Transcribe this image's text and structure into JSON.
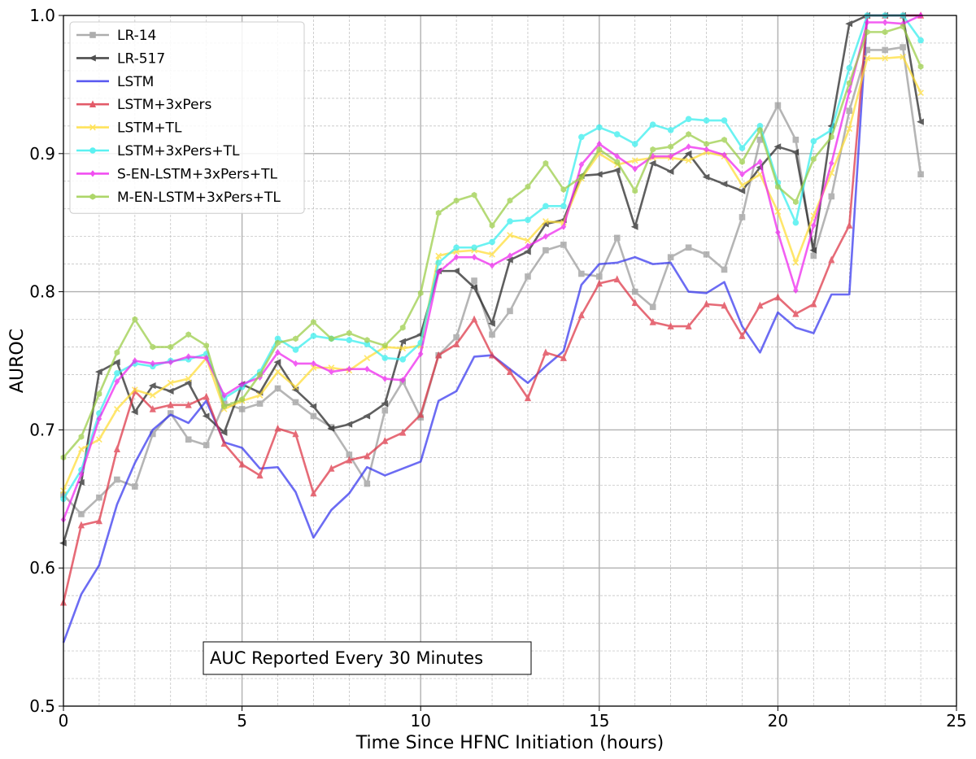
{
  "chart_data": {
    "type": "line",
    "xlabel": "Time Since HFNC Initiation (hours)",
    "ylabel": "AUROC",
    "xlim": [
      0,
      25
    ],
    "ylim": [
      0.5,
      1.0
    ],
    "x_ticks": [
      "0",
      "5",
      "10",
      "15",
      "20",
      "25"
    ],
    "y_ticks": [
      "0.5",
      "0.6",
      "0.7",
      "0.8",
      "0.9",
      "1.0"
    ],
    "grid": true,
    "minor_grid": true,
    "legend_position": "top-left",
    "annotation": "AUC Reported Every 30 Minutes",
    "x": [
      0,
      0.5,
      1,
      1.5,
      2,
      2.5,
      3,
      3.5,
      4,
      4.5,
      5,
      5.5,
      6,
      6.5,
      7,
      7.5,
      8,
      8.5,
      9,
      9.5,
      10,
      10.5,
      11,
      11.5,
      12,
      12.5,
      13,
      13.5,
      14,
      14.5,
      15,
      15.5,
      16,
      16.5,
      17,
      17.5,
      18,
      18.5,
      19,
      19.5,
      20,
      20.5,
      21,
      21.5,
      22,
      22.5,
      23,
      23.5,
      24
    ],
    "series": [
      {
        "name": "LR-14",
        "color": "#999999",
        "marker": "square",
        "values": [
          0.653,
          0.639,
          0.651,
          0.664,
          0.659,
          0.697,
          0.712,
          0.693,
          0.689,
          0.719,
          0.715,
          0.719,
          0.73,
          0.72,
          0.71,
          0.702,
          0.682,
          0.661,
          0.714,
          0.735,
          0.709,
          0.754,
          0.767,
          0.808,
          0.769,
          0.786,
          0.811,
          0.83,
          0.834,
          0.813,
          0.811,
          0.839,
          0.8,
          0.789,
          0.825,
          0.832,
          0.827,
          0.816,
          0.854,
          0.91,
          0.935,
          0.91,
          0.826,
          0.869,
          0.931,
          0.975,
          0.975,
          0.977,
          0.885
        ]
      },
      {
        "name": "LR-517",
        "color": "#222222",
        "marker": "left-triangle",
        "values": [
          0.618,
          0.662,
          0.742,
          0.749,
          0.713,
          0.732,
          0.728,
          0.734,
          0.71,
          0.698,
          0.733,
          0.727,
          0.749,
          0.729,
          0.717,
          0.701,
          0.704,
          0.71,
          0.719,
          0.764,
          0.769,
          0.815,
          0.815,
          0.803,
          0.777,
          0.823,
          0.829,
          0.849,
          0.852,
          0.884,
          0.885,
          0.888,
          0.847,
          0.893,
          0.887,
          0.9,
          0.883,
          0.878,
          0.873,
          0.89,
          0.905,
          0.901,
          0.83,
          0.92,
          0.994,
          1.0,
          1.0,
          1.0,
          0.923
        ]
      },
      {
        "name": "LSTM",
        "color": "#3333ee",
        "marker": "none",
        "values": [
          0.546,
          0.581,
          0.602,
          0.646,
          0.676,
          0.7,
          0.711,
          0.705,
          0.721,
          0.691,
          0.687,
          0.672,
          0.673,
          0.655,
          0.622,
          0.642,
          0.654,
          0.673,
          0.667,
          0.672,
          0.677,
          0.721,
          0.728,
          0.753,
          0.754,
          0.744,
          0.734,
          0.746,
          0.757,
          0.805,
          0.82,
          0.821,
          0.825,
          0.82,
          0.821,
          0.8,
          0.799,
          0.807,
          0.775,
          0.756,
          0.785,
          0.774,
          0.77,
          0.798,
          0.798,
          1.0,
          1.0,
          1.0,
          1.0
        ]
      },
      {
        "name": "LSTM+3xPers",
        "color": "#dd3344",
        "marker": "triangle",
        "values": [
          0.575,
          0.631,
          0.634,
          0.686,
          0.728,
          0.715,
          0.718,
          0.718,
          0.724,
          0.69,
          0.675,
          0.667,
          0.701,
          0.697,
          0.654,
          0.672,
          0.678,
          0.681,
          0.692,
          0.698,
          0.711,
          0.754,
          0.762,
          0.78,
          0.754,
          0.742,
          0.723,
          0.756,
          0.752,
          0.783,
          0.806,
          0.809,
          0.792,
          0.778,
          0.775,
          0.775,
          0.791,
          0.79,
          0.768,
          0.79,
          0.796,
          0.784,
          0.791,
          0.823,
          0.848,
          1.0,
          1.0,
          1.0,
          1.0
        ]
      },
      {
        "name": "LSTM+TL",
        "color": "#ffdd33",
        "marker": "x",
        "values": [
          0.656,
          0.686,
          0.693,
          0.715,
          0.729,
          0.725,
          0.734,
          0.737,
          0.752,
          0.715,
          0.721,
          0.725,
          0.742,
          0.731,
          0.745,
          0.745,
          0.743,
          0.752,
          0.76,
          0.759,
          0.761,
          0.826,
          0.829,
          0.83,
          0.827,
          0.841,
          0.837,
          0.851,
          0.85,
          0.882,
          0.9,
          0.892,
          0.895,
          0.897,
          0.897,
          0.895,
          0.901,
          0.898,
          0.877,
          0.885,
          0.858,
          0.821,
          0.855,
          0.886,
          0.918,
          0.969,
          0.969,
          0.97,
          0.944
        ]
      },
      {
        "name": "LSTM+3xPers+TL",
        "color": "#33eeee",
        "marker": "circle",
        "values": [
          0.65,
          0.671,
          0.712,
          0.741,
          0.748,
          0.746,
          0.75,
          0.751,
          0.755,
          0.723,
          0.731,
          0.742,
          0.766,
          0.758,
          0.768,
          0.766,
          0.765,
          0.762,
          0.752,
          0.751,
          0.763,
          0.821,
          0.832,
          0.832,
          0.836,
          0.851,
          0.852,
          0.862,
          0.862,
          0.912,
          0.919,
          0.914,
          0.907,
          0.921,
          0.917,
          0.925,
          0.924,
          0.924,
          0.904,
          0.92,
          0.879,
          0.85,
          0.909,
          0.917,
          0.962,
          1.0,
          1.0,
          1.0,
          0.982
        ]
      },
      {
        "name": "S-EN-LSTM+3xPers+TL",
        "color": "#ee22ee",
        "marker": "diamond",
        "values": [
          0.635,
          0.668,
          0.708,
          0.735,
          0.75,
          0.748,
          0.749,
          0.753,
          0.752,
          0.725,
          0.733,
          0.738,
          0.756,
          0.748,
          0.748,
          0.742,
          0.744,
          0.744,
          0.737,
          0.736,
          0.755,
          0.814,
          0.825,
          0.825,
          0.819,
          0.826,
          0.833,
          0.84,
          0.847,
          0.892,
          0.907,
          0.898,
          0.889,
          0.898,
          0.898,
          0.905,
          0.903,
          0.899,
          0.885,
          0.894,
          0.843,
          0.801,
          0.848,
          0.893,
          0.945,
          0.995,
          0.995,
          0.994,
          1.0
        ]
      },
      {
        "name": "M-EN-LSTM+3xPers+TL",
        "color": "#99cc44",
        "marker": "hexagon",
        "values": [
          0.68,
          0.695,
          0.726,
          0.756,
          0.78,
          0.76,
          0.76,
          0.769,
          0.761,
          0.717,
          0.722,
          0.74,
          0.763,
          0.766,
          0.778,
          0.766,
          0.77,
          0.765,
          0.761,
          0.774,
          0.799,
          0.857,
          0.866,
          0.87,
          0.848,
          0.866,
          0.876,
          0.893,
          0.874,
          0.883,
          0.903,
          0.894,
          0.873,
          0.903,
          0.905,
          0.914,
          0.907,
          0.91,
          0.894,
          0.917,
          0.876,
          0.865,
          0.896,
          0.912,
          0.951,
          0.988,
          0.988,
          0.992,
          0.963
        ]
      }
    ]
  }
}
